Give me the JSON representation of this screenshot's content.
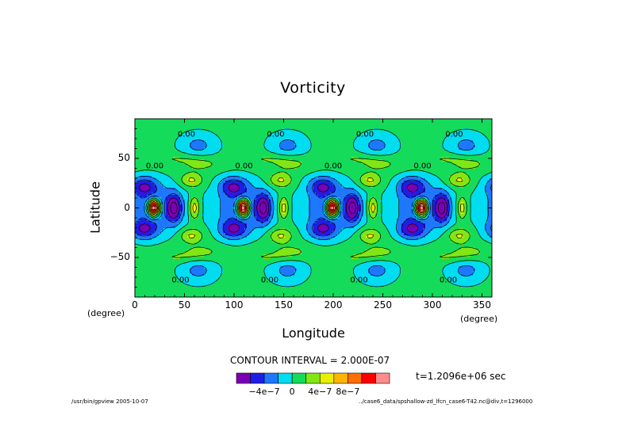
{
  "chart_data": {
    "type": "heatmap",
    "title": "Vorticity",
    "xlabel": "Longitude",
    "ylabel": "Latitude",
    "x_unit": "(degree)",
    "y_unit": "(degree)",
    "xlim": [
      0,
      360
    ],
    "ylim": [
      -90,
      90
    ],
    "x_ticks": [
      0,
      50,
      100,
      150,
      200,
      250,
      300,
      350
    ],
    "y_ticks": [
      -50,
      0,
      50
    ],
    "x_tick_labels": [
      "0",
      "50",
      "100",
      "150",
      "200",
      "250",
      "300",
      "350"
    ],
    "y_tick_labels": [
      "−50",
      "0",
      "50"
    ],
    "contour_labels": [
      "0.00",
      "0.00",
      "0.00",
      "0.00",
      "0.00",
      "0.00",
      "0.00",
      "0.00",
      "0.00",
      "0.00",
      "0.00",
      "0.00"
    ],
    "contour_interval": "CONTOUR INTERVAL = 2.000E-07",
    "colorbar": {
      "colors": [
        "#7a00b4",
        "#1e1ee6",
        "#1e78ff",
        "#00dcf0",
        "#14dc5a",
        "#82e614",
        "#e6f000",
        "#ffb400",
        "#ff6e00",
        "#ff0000",
        "#ff8c8c"
      ],
      "tick_labels": [
        "−4e−7",
        "0",
        "4e−7",
        "8e−7"
      ]
    },
    "time_label": "t=1.2096e+06 sec",
    "footer_left": "/usr/bin/gpview  2005-10-07",
    "footer_right": "../case6_data/spshallow-zd_lfcn_case6-T42.nc@div,t=1296000",
    "wave_number": 4
  }
}
